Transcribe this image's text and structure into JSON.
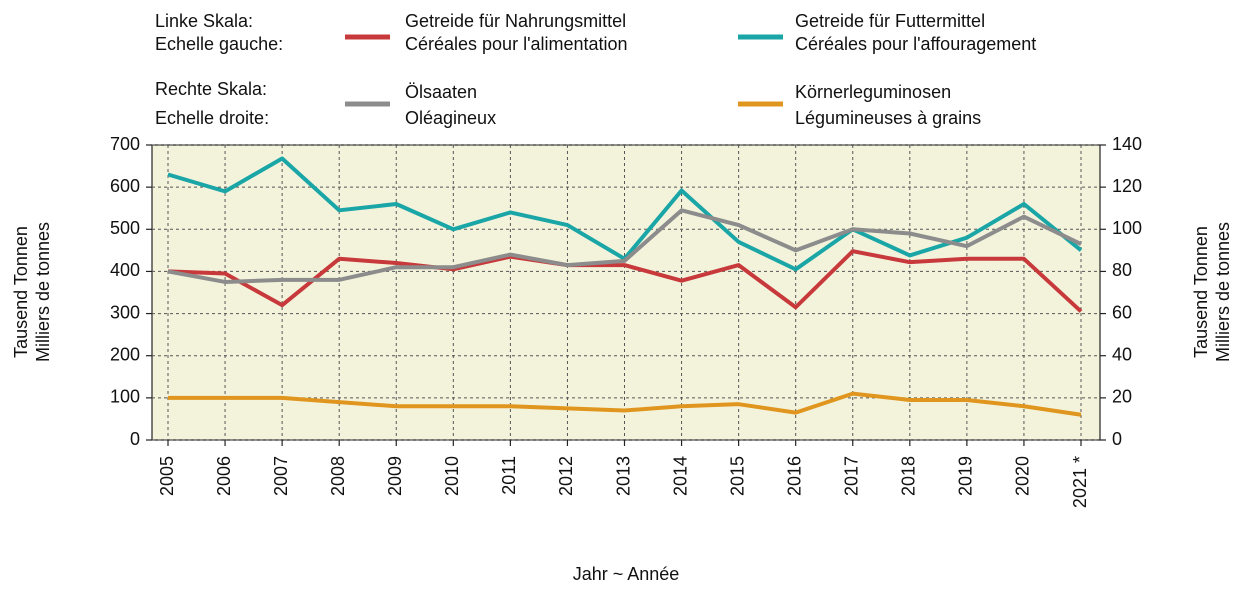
{
  "chart_data": {
    "type": "line",
    "left_scale_label": [
      "Linke Skala:",
      "Echelle gauche:"
    ],
    "right_scale_label": [
      "Rechte Skala:",
      "Echelle droite:"
    ],
    "xlabel": "Jahr  ~  Année",
    "ylabel": [
      "Tausend Tonnen",
      "Milliers de tonnes"
    ],
    "y2label": [
      "Tausend Tonnen",
      "Milliers de tonnes"
    ],
    "categories": [
      "2005",
      "2006",
      "2007",
      "2008",
      "2009",
      "2010",
      "2011",
      "2012",
      "2013",
      "2014",
      "2015",
      "2016",
      "2017",
      "2018",
      "2019",
      "2020",
      "2021 *"
    ],
    "ylim": [
      0,
      700
    ],
    "yticks": [
      0,
      100,
      200,
      300,
      400,
      500,
      600,
      700
    ],
    "y2lim": [
      0,
      140
    ],
    "y2ticks": [
      0,
      20,
      40,
      60,
      80,
      100,
      120,
      140
    ],
    "grid": true,
    "series": [
      {
        "name": [
          "Getreide für Nahrungsmittel",
          "Céréales pour l'alimentation"
        ],
        "color": "#c8393b",
        "values": [
          400,
          395,
          320,
          430,
          420,
          405,
          435,
          415,
          415,
          378,
          415,
          315,
          448,
          422,
          430,
          430,
          305
        ]
      },
      {
        "name": [
          "Getreide für Futtermittel",
          "Céréales pour l'affouragement"
        ],
        "color": "#1aa6a6",
        "values": [
          630,
          590,
          668,
          545,
          560,
          500,
          540,
          510,
          430,
          592,
          470,
          405,
          500,
          438,
          480,
          560,
          450
        ]
      },
      {
        "name": [
          "Ölsaaten",
          "Oléagineux"
        ],
        "color": "#8c8c8c",
        "axis": "y2",
        "values": [
          80,
          75,
          76,
          76,
          82,
          82,
          88,
          83,
          85,
          109,
          102,
          90,
          100,
          98,
          92,
          106,
          93
        ]
      },
      {
        "name": [
          "Körnerleguminosen",
          "Légumineuses à grains"
        ],
        "color": "#e0961e",
        "axis": "y2",
        "values": [
          20,
          20,
          20,
          18,
          16,
          16,
          16,
          15,
          14,
          16,
          17,
          13,
          22,
          19,
          19,
          16,
          12
        ]
      }
    ]
  }
}
